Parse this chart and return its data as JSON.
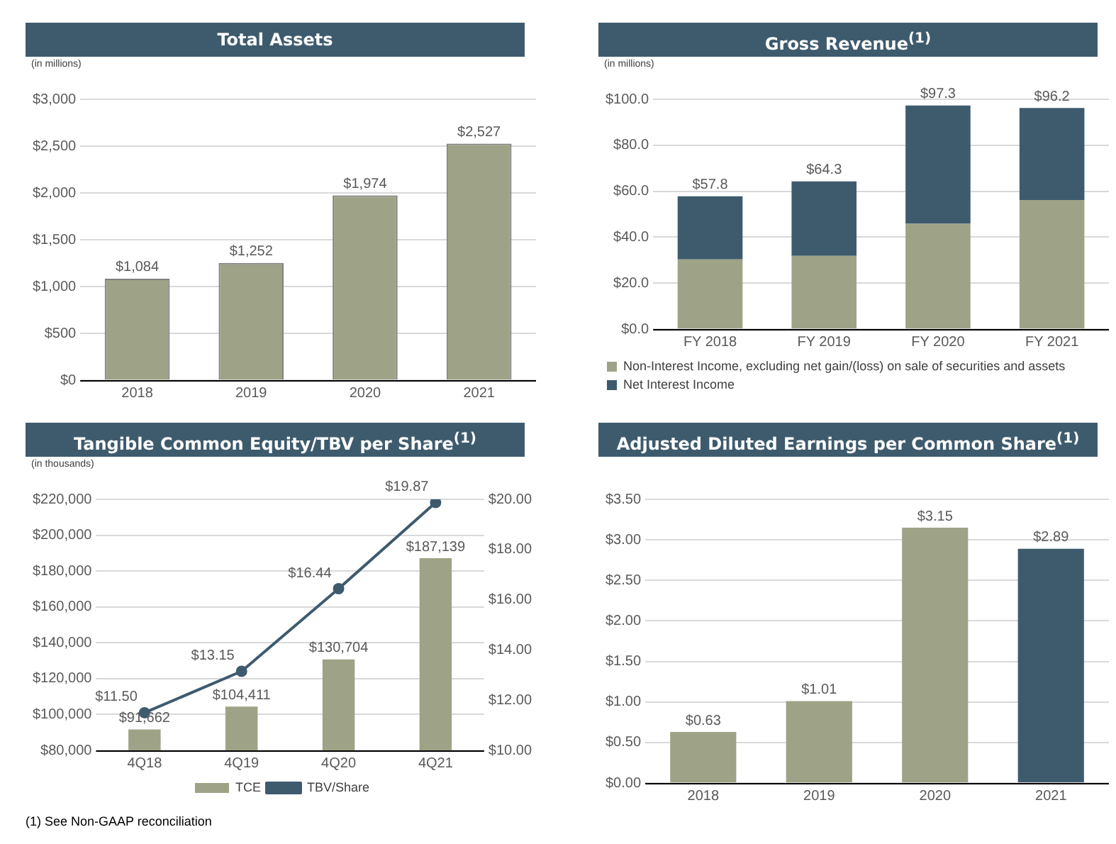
{
  "chart_data": [
    {
      "type": "bar",
      "title": "Total Assets",
      "annotations": [
        "(in millions)"
      ],
      "categories": [
        "2018",
        "2019",
        "2020",
        "2021"
      ],
      "series": [
        {
          "color": "#9ea387",
          "values": [
            1084,
            1252,
            1974,
            2527
          ],
          "value_labels": [
            "$1,084",
            "$1,252",
            "$1,974",
            "$2,527"
          ]
        }
      ],
      "ylim": [
        0,
        3000
      ],
      "yticks": [
        {
          "value": 0,
          "label": "$0"
        },
        {
          "value": 500,
          "label": "$500"
        },
        {
          "value": 1000,
          "label": "$1,000"
        },
        {
          "value": 1500,
          "label": "$1,500"
        },
        {
          "value": 2000,
          "label": "$2,000"
        },
        {
          "value": 2500,
          "label": "$2,500"
        },
        {
          "value": 3000,
          "label": "$3,000"
        }
      ],
      "grid": "y"
    },
    {
      "type": "bar",
      "title": "Gross Revenue$^{(1)}$",
      "annotations": [
        "(in millions)"
      ],
      "categories": [
        "FY 2018",
        "FY 2019",
        "FY 2020",
        "FY 2021"
      ],
      "stacked": true,
      "series": [
        {
          "name": "Non-Interest Income, excluding net gain/(loss) on sale of securities and assets",
          "color": "#9ea387",
          "values": [
            30.3,
            31.9,
            45.8,
            56.2
          ]
        },
        {
          "name": "Net Interest Income",
          "color": "#3e5b6e",
          "values": [
            27.5,
            32.4,
            51.5,
            40.0
          ]
        }
      ],
      "totals": [
        "$57.8",
        "$64.3",
        "$97.3",
        "$96.2"
      ],
      "ylim": [
        0,
        100
      ],
      "yticks": [
        {
          "value": 0,
          "label": "$0.0"
        },
        {
          "value": 20,
          "label": "$20.0"
        },
        {
          "value": 40,
          "label": "$40.0"
        },
        {
          "value": 60,
          "label": "$60.0"
        },
        {
          "value": 80,
          "label": "$80.0"
        },
        {
          "value": 100,
          "label": "$100.0"
        }
      ],
      "grid": "y",
      "legend": "bottom"
    },
    {
      "type": "bar",
      "title": "Tangible Common Equity/TBV per Share$^{(1)}$",
      "annotations": [
        "(in thousands)",
        "(1) See Non-GAAP reconciliation"
      ],
      "categories": [
        "4Q18",
        "4Q19",
        "4Q20",
        "4Q21"
      ],
      "series": [
        {
          "name": "TCE",
          "color": "#9ea387",
          "values": [
            91662,
            104411,
            130704,
            187139
          ],
          "value_labels": [
            "$91,662",
            "$104,411",
            "$130,704",
            "$187,139"
          ]
        },
        {
          "name": "TBV/Share",
          "type": "line",
          "axis": "y2",
          "color": "#3e5b6e",
          "values": [
            11.5,
            13.15,
            16.44,
            19.87
          ],
          "value_labels": [
            "$11.50",
            "$13.15",
            "$16.44",
            "$19.87"
          ]
        }
      ],
      "ylim": [
        80000,
        220000
      ],
      "yticks": [
        {
          "value": 80000,
          "label": "$80,000"
        },
        {
          "value": 100000,
          "label": "$100,000"
        },
        {
          "value": 120000,
          "label": "$120,000"
        },
        {
          "value": 140000,
          "label": "$140,000"
        },
        {
          "value": 160000,
          "label": "$160,000"
        },
        {
          "value": 180000,
          "label": "$180,000"
        },
        {
          "value": 200000,
          "label": "$200,000"
        },
        {
          "value": 220000,
          "label": "$220,000"
        }
      ],
      "y2lim": [
        10,
        20
      ],
      "y2ticks": [
        {
          "value": 10,
          "label": "$10.00"
        },
        {
          "value": 12,
          "label": "$12.00"
        },
        {
          "value": 14,
          "label": "$14.00"
        },
        {
          "value": 16,
          "label": "$16.00"
        },
        {
          "value": 18,
          "label": "$18.00"
        },
        {
          "value": 20,
          "label": "$20.00"
        }
      ],
      "grid": "y",
      "legend": "bottom",
      "marker": "circle",
      "line_style": "solid"
    },
    {
      "type": "bar",
      "title": "Adjusted Diluted Earnings per Common Share$^{(1)}$",
      "categories": [
        "2018",
        "2019",
        "2020",
        "2021"
      ],
      "series": [
        {
          "colors": [
            "#9ea387",
            "#9ea387",
            "#9ea387",
            "#3e5b6e"
          ],
          "values": [
            0.63,
            1.01,
            3.15,
            2.89
          ],
          "value_labels": [
            "$0.63",
            "$1.01",
            "$3.15",
            "$2.89"
          ]
        }
      ],
      "ylim": [
        0,
        3.5
      ],
      "yticks": [
        {
          "value": 0,
          "label": "$0.00"
        },
        {
          "value": 0.5,
          "label": "$0.50"
        },
        {
          "value": 1,
          "label": "$1.00"
        },
        {
          "value": 1.5,
          "label": "$1.50"
        },
        {
          "value": 2,
          "label": "$2.00"
        },
        {
          "value": 2.5,
          "label": "$2.50"
        },
        {
          "value": 3,
          "label": "$3.00"
        },
        {
          "value": 3.5,
          "label": "$3.50"
        }
      ],
      "grid": "y"
    }
  ]
}
